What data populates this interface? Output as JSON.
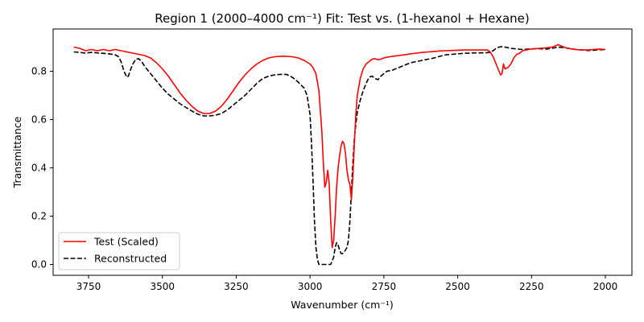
{
  "chart_data": {
    "type": "line",
    "title": "Region 1 (2000–4000 cm⁻¹) Fit: Test vs. (1-hexanol + Hexane)",
    "xlabel": "Wavenumber (cm⁻¹)",
    "ylabel": "Transmittance",
    "x_reversed": true,
    "xlim": [
      3870,
      1910
    ],
    "ylim": [
      -0.045,
      0.975
    ],
    "x_ticks": [
      3750,
      3500,
      3250,
      3000,
      2750,
      2500,
      2250,
      2000
    ],
    "x_tick_labels": [
      "3750",
      "3500",
      "3250",
      "3000",
      "2750",
      "2500",
      "2250",
      "2000"
    ],
    "y_ticks": [
      0.0,
      0.2,
      0.4,
      0.6,
      0.8
    ],
    "y_tick_labels": [
      "0.0",
      "0.2",
      "0.4",
      "0.6",
      "0.8"
    ],
    "grid": false,
    "legend_position": "lower-left",
    "series": [
      {
        "name": "Test (Scaled)",
        "color": "#ff0000",
        "style": "solid",
        "x": [
          3800,
          3780,
          3760,
          3740,
          3720,
          3700,
          3680,
          3660,
          3640,
          3620,
          3600,
          3580,
          3560,
          3540,
          3520,
          3500,
          3480,
          3460,
          3440,
          3420,
          3400,
          3380,
          3360,
          3340,
          3320,
          3300,
          3280,
          3260,
          3240,
          3220,
          3200,
          3180,
          3160,
          3140,
          3120,
          3100,
          3080,
          3060,
          3040,
          3020,
          3000,
          2990,
          2980,
          2970,
          2960,
          2955,
          2950,
          2945,
          2940,
          2935,
          2930,
          2925,
          2920,
          2915,
          2910,
          2905,
          2900,
          2895,
          2890,
          2885,
          2880,
          2875,
          2870,
          2865,
          2860,
          2855,
          2850,
          2845,
          2840,
          2830,
          2820,
          2810,
          2800,
          2790,
          2780,
          2770,
          2760,
          2750,
          2740,
          2730,
          2720,
          2700,
          2680,
          2660,
          2640,
          2620,
          2600,
          2580,
          2560,
          2540,
          2520,
          2500,
          2480,
          2460,
          2440,
          2420,
          2400,
          2390,
          2380,
          2370,
          2360,
          2355,
          2350,
          2345,
          2340,
          2330,
          2320,
          2310,
          2300,
          2290,
          2280,
          2260,
          2240,
          2220,
          2200,
          2180,
          2170,
          2160,
          2140,
          2120,
          2100,
          2080,
          2060,
          2040,
          2020,
          2000
        ],
        "y": [
          0.9,
          0.895,
          0.885,
          0.89,
          0.885,
          0.89,
          0.885,
          0.89,
          0.885,
          0.88,
          0.875,
          0.87,
          0.865,
          0.855,
          0.835,
          0.81,
          0.78,
          0.745,
          0.71,
          0.68,
          0.655,
          0.635,
          0.625,
          0.625,
          0.635,
          0.655,
          0.685,
          0.72,
          0.755,
          0.785,
          0.81,
          0.83,
          0.845,
          0.855,
          0.86,
          0.862,
          0.862,
          0.86,
          0.855,
          0.845,
          0.83,
          0.815,
          0.79,
          0.72,
          0.55,
          0.42,
          0.32,
          0.34,
          0.39,
          0.33,
          0.18,
          0.07,
          0.1,
          0.2,
          0.32,
          0.4,
          0.45,
          0.49,
          0.51,
          0.5,
          0.46,
          0.39,
          0.35,
          0.33,
          0.27,
          0.36,
          0.5,
          0.62,
          0.7,
          0.77,
          0.81,
          0.83,
          0.84,
          0.85,
          0.852,
          0.848,
          0.85,
          0.855,
          0.858,
          0.86,
          0.862,
          0.865,
          0.868,
          0.872,
          0.875,
          0.878,
          0.88,
          0.882,
          0.884,
          0.885,
          0.886,
          0.887,
          0.888,
          0.888,
          0.888,
          0.888,
          0.888,
          0.88,
          0.86,
          0.83,
          0.8,
          0.785,
          0.79,
          0.83,
          0.81,
          0.815,
          0.83,
          0.855,
          0.87,
          0.875,
          0.885,
          0.89,
          0.893,
          0.895,
          0.897,
          0.9,
          0.905,
          0.91,
          0.9,
          0.893,
          0.89,
          0.888,
          0.888,
          0.89,
          0.892,
          0.89
        ]
      },
      {
        "name": "Reconstructed",
        "color": "#000000",
        "style": "dashed",
        "x": [
          3800,
          3780,
          3760,
          3740,
          3720,
          3700,
          3680,
          3660,
          3650,
          3640,
          3630,
          3620,
          3615,
          3610,
          3600,
          3590,
          3580,
          3570,
          3560,
          3540,
          3520,
          3500,
          3480,
          3460,
          3440,
          3420,
          3400,
          3380,
          3360,
          3340,
          3320,
          3300,
          3280,
          3260,
          3240,
          3220,
          3200,
          3180,
          3160,
          3140,
          3120,
          3100,
          3080,
          3060,
          3040,
          3020,
          3010,
          3000,
          2995,
          2990,
          2985,
          2980,
          2975,
          2970,
          2965,
          2960,
          2950,
          2940,
          2930,
          2920,
          2915,
          2910,
          2905,
          2900,
          2895,
          2890,
          2885,
          2880,
          2875,
          2870,
          2865,
          2860,
          2855,
          2850,
          2845,
          2840,
          2830,
          2820,
          2810,
          2800,
          2790,
          2780,
          2770,
          2760,
          2750,
          2740,
          2720,
          2700,
          2680,
          2660,
          2640,
          2620,
          2600,
          2580,
          2560,
          2540,
          2520,
          2500,
          2480,
          2460,
          2440,
          2420,
          2400,
          2390,
          2380,
          2370,
          2360,
          2350,
          2340,
          2320,
          2300,
          2280,
          2260,
          2240,
          2220,
          2200,
          2180,
          2160,
          2140,
          2120,
          2100,
          2080,
          2060,
          2040,
          2020,
          2000
        ],
        "y": [
          0.88,
          0.878,
          0.875,
          0.878,
          0.876,
          0.874,
          0.872,
          0.868,
          0.862,
          0.84,
          0.8,
          0.775,
          0.78,
          0.8,
          0.83,
          0.85,
          0.852,
          0.84,
          0.82,
          0.79,
          0.76,
          0.73,
          0.705,
          0.685,
          0.665,
          0.65,
          0.635,
          0.622,
          0.615,
          0.615,
          0.618,
          0.625,
          0.64,
          0.66,
          0.68,
          0.7,
          0.725,
          0.75,
          0.77,
          0.78,
          0.785,
          0.787,
          0.787,
          0.775,
          0.755,
          0.73,
          0.7,
          0.62,
          0.5,
          0.35,
          0.18,
          0.07,
          0.02,
          0.0,
          0.0,
          0.0,
          0.0,
          0.0,
          0.0,
          0.03,
          0.07,
          0.09,
          0.08,
          0.06,
          0.045,
          0.045,
          0.05,
          0.06,
          0.07,
          0.1,
          0.18,
          0.3,
          0.42,
          0.52,
          0.58,
          0.63,
          0.68,
          0.72,
          0.75,
          0.775,
          0.78,
          0.77,
          0.765,
          0.78,
          0.79,
          0.8,
          0.805,
          0.815,
          0.825,
          0.835,
          0.84,
          0.845,
          0.85,
          0.855,
          0.862,
          0.868,
          0.87,
          0.872,
          0.874,
          0.875,
          0.876,
          0.876,
          0.877,
          0.878,
          0.885,
          0.895,
          0.9,
          0.902,
          0.9,
          0.895,
          0.892,
          0.89,
          0.892,
          0.893,
          0.893,
          0.892,
          0.895,
          0.9,
          0.898,
          0.894,
          0.89,
          0.888,
          0.886,
          0.887,
          0.889,
          0.89
        ]
      }
    ]
  }
}
